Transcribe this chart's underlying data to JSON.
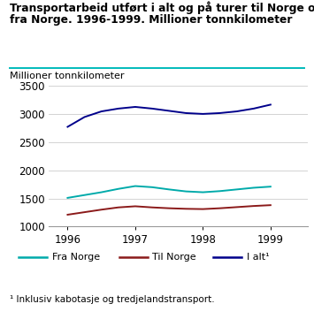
{
  "title_line1": "Transportarbeid utført i alt og på turer til Norge og",
  "title_line2": "fra Norge. 1996-1999. Millioner tonnkilometer",
  "ylabel": "Millioner tonnkilometer",
  "footnote": "¹ Inklusiv kabotasje og tredjelandstransport.",
  "x_ticks": [
    1996,
    1997,
    1998,
    1999
  ],
  "x_values": [
    1996.0,
    1996.25,
    1996.5,
    1996.75,
    1997.0,
    1997.25,
    1997.5,
    1997.75,
    1998.0,
    1998.25,
    1998.5,
    1998.75,
    1999.0
  ],
  "i_alt": [
    2775,
    2950,
    3050,
    3100,
    3130,
    3100,
    3060,
    3020,
    3005,
    3020,
    3050,
    3100,
    3170
  ],
  "fra_norge": [
    1510,
    1560,
    1610,
    1670,
    1720,
    1700,
    1660,
    1625,
    1610,
    1630,
    1660,
    1690,
    1710
  ],
  "til_norge": [
    1210,
    1255,
    1300,
    1340,
    1360,
    1340,
    1325,
    1315,
    1310,
    1325,
    1345,
    1365,
    1380
  ],
  "color_i_alt": "#00008B",
  "color_fra_norge": "#00AAAA",
  "color_til_norge": "#8B1A1A",
  "teal_line_color": "#00BBBB",
  "ylim": [
    1000,
    3500
  ],
  "yticks": [
    1000,
    1500,
    2000,
    2500,
    3000,
    3500
  ],
  "legend_labels": [
    "Fra Norge",
    "Til Norge",
    "I alt¹"
  ],
  "background_color": "#ffffff",
  "grid_color": "#cccccc"
}
